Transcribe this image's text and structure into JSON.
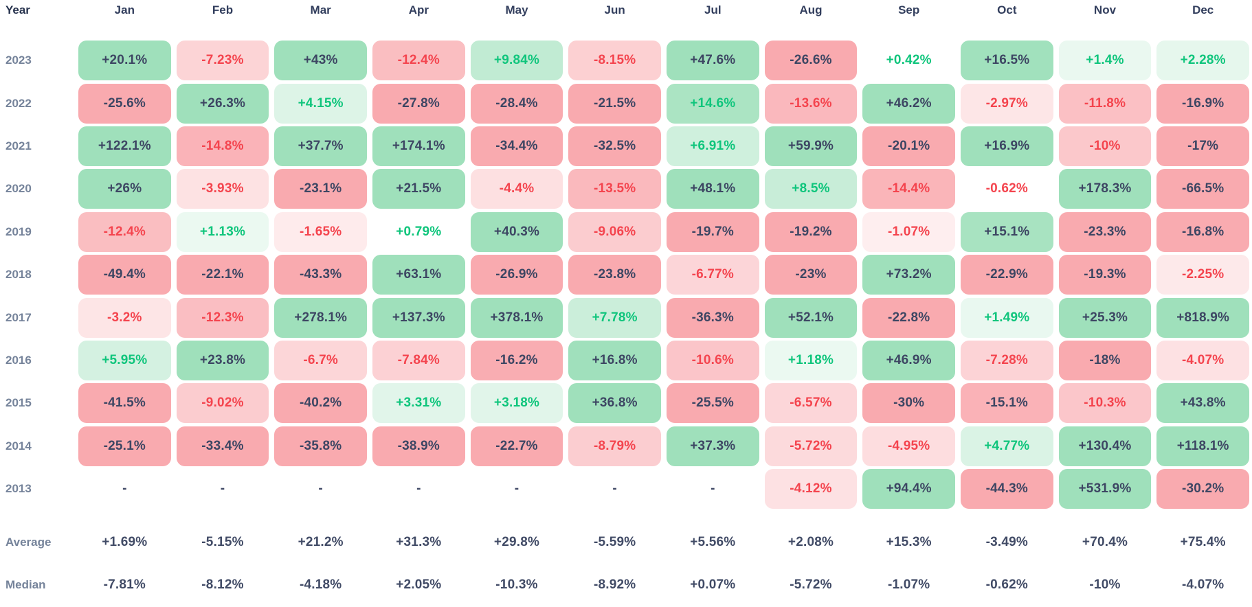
{
  "table": {
    "year_header": "Year",
    "months": [
      "Jan",
      "Feb",
      "Mar",
      "Apr",
      "May",
      "Jun",
      "Jul",
      "Aug",
      "Sep",
      "Oct",
      "Nov",
      "Dec"
    ],
    "rows": [
      {
        "year": "2023",
        "values": [
          "+20.1%",
          "-7.23%",
          "+43%",
          "-12.4%",
          "+9.84%",
          "-8.15%",
          "+47.6%",
          "-26.6%",
          "+0.42%",
          "+16.5%",
          "+1.4%",
          "+2.28%"
        ]
      },
      {
        "year": "2022",
        "values": [
          "-25.6%",
          "+26.3%",
          "+4.15%",
          "-27.8%",
          "-28.4%",
          "-21.5%",
          "+14.6%",
          "-13.6%",
          "+46.2%",
          "-2.97%",
          "-11.8%",
          "-16.9%"
        ]
      },
      {
        "year": "2021",
        "values": [
          "+122.1%",
          "-14.8%",
          "+37.7%",
          "+174.1%",
          "-34.4%",
          "-32.5%",
          "+6.91%",
          "+59.9%",
          "-20.1%",
          "+16.9%",
          "-10%",
          "-17%"
        ]
      },
      {
        "year": "2020",
        "values": [
          "+26%",
          "-3.93%",
          "-23.1%",
          "+21.5%",
          "-4.4%",
          "-13.5%",
          "+48.1%",
          "+8.5%",
          "-14.4%",
          "-0.62%",
          "+178.3%",
          "-66.5%"
        ]
      },
      {
        "year": "2019",
        "values": [
          "-12.4%",
          "+1.13%",
          "-1.65%",
          "+0.79%",
          "+40.3%",
          "-9.06%",
          "-19.7%",
          "-19.2%",
          "-1.07%",
          "+15.1%",
          "-23.3%",
          "-16.8%"
        ]
      },
      {
        "year": "2018",
        "values": [
          "-49.4%",
          "-22.1%",
          "-43.3%",
          "+63.1%",
          "-26.9%",
          "-23.8%",
          "-6.77%",
          "-23%",
          "+73.2%",
          "-22.9%",
          "-19.3%",
          "-2.25%"
        ]
      },
      {
        "year": "2017",
        "values": [
          "-3.2%",
          "-12.3%",
          "+278.1%",
          "+137.3%",
          "+378.1%",
          "+7.78%",
          "-36.3%",
          "+52.1%",
          "-22.8%",
          "+1.49%",
          "+25.3%",
          "+818.9%"
        ]
      },
      {
        "year": "2016",
        "values": [
          "+5.95%",
          "+23.8%",
          "-6.7%",
          "-7.84%",
          "-16.2%",
          "+16.8%",
          "-10.6%",
          "+1.18%",
          "+46.9%",
          "-7.28%",
          "-18%",
          "-4.07%"
        ]
      },
      {
        "year": "2015",
        "values": [
          "-41.5%",
          "-9.02%",
          "-40.2%",
          "+3.31%",
          "+3.18%",
          "+36.8%",
          "-25.5%",
          "-6.57%",
          "-30%",
          "-15.1%",
          "-10.3%",
          "+43.8%"
        ]
      },
      {
        "year": "2014",
        "values": [
          "-25.1%",
          "-33.4%",
          "-35.8%",
          "-38.9%",
          "-22.7%",
          "-8.79%",
          "+37.3%",
          "-5.72%",
          "-4.95%",
          "+4.77%",
          "+130.4%",
          "+118.1%"
        ]
      },
      {
        "year": "2013",
        "values": [
          "-",
          "-",
          "-",
          "-",
          "-",
          "-",
          "-",
          "-4.12%",
          "+94.4%",
          "-44.3%",
          "+531.9%",
          "-30.2%"
        ]
      }
    ],
    "summary": [
      {
        "label": "Average",
        "values": [
          "+1.69%",
          "-5.15%",
          "+21.2%",
          "+31.3%",
          "+29.8%",
          "-5.59%",
          "+5.56%",
          "+2.08%",
          "+15.3%",
          "-3.49%",
          "+70.4%",
          "+75.4%"
        ]
      },
      {
        "label": "Median",
        "values": [
          "-7.81%",
          "-8.12%",
          "-4.18%",
          "+2.05%",
          "-10.3%",
          "-8.92%",
          "+0.07%",
          "-5.72%",
          "-1.07%",
          "-0.62%",
          "-10%",
          "-4.07%"
        ]
      }
    ]
  },
  "colors": {
    "positive_strong_bg": "#9fe0bb",
    "negative_strong_bg": "#f9aaaf",
    "positive_text": "#0fc57c",
    "negative_text": "#f4444e",
    "dark_text": "#3d4663",
    "label_text": "#75839a",
    "month_header_text": "#323e5d",
    "year_header_text": "#27334e",
    "summary_value_text": "#414b66"
  },
  "chart_data": {
    "type": "heatmap",
    "title": "Monthly returns heatmap by year",
    "x": [
      "Jan",
      "Feb",
      "Mar",
      "Apr",
      "May",
      "Jun",
      "Jul",
      "Aug",
      "Sep",
      "Oct",
      "Nov",
      "Dec"
    ],
    "rows": [
      {
        "year": 2023,
        "values": [
          20.1,
          -7.23,
          43,
          -12.4,
          9.84,
          -8.15,
          47.6,
          -26.6,
          0.42,
          16.5,
          1.4,
          2.28
        ]
      },
      {
        "year": 2022,
        "values": [
          -25.6,
          26.3,
          4.15,
          -27.8,
          -28.4,
          -21.5,
          14.6,
          -13.6,
          46.2,
          -2.97,
          -11.8,
          -16.9
        ]
      },
      {
        "year": 2021,
        "values": [
          122.1,
          -14.8,
          37.7,
          174.1,
          -34.4,
          -32.5,
          6.91,
          59.9,
          -20.1,
          16.9,
          -10,
          -17
        ]
      },
      {
        "year": 2020,
        "values": [
          26,
          -3.93,
          -23.1,
          21.5,
          -4.4,
          -13.5,
          48.1,
          8.5,
          -14.4,
          -0.62,
          178.3,
          -66.5
        ]
      },
      {
        "year": 2019,
        "values": [
          -12.4,
          1.13,
          -1.65,
          0.79,
          40.3,
          -9.06,
          -19.7,
          -19.2,
          -1.07,
          15.1,
          -23.3,
          -16.8
        ]
      },
      {
        "year": 2018,
        "values": [
          -49.4,
          -22.1,
          -43.3,
          63.1,
          -26.9,
          -23.8,
          -6.77,
          -23,
          73.2,
          -22.9,
          -19.3,
          -2.25
        ]
      },
      {
        "year": 2017,
        "values": [
          -3.2,
          -12.3,
          278.1,
          137.3,
          378.1,
          7.78,
          -36.3,
          52.1,
          -22.8,
          1.49,
          25.3,
          818.9
        ]
      },
      {
        "year": 2016,
        "values": [
          5.95,
          23.8,
          -6.7,
          -7.84,
          -16.2,
          16.8,
          -10.6,
          1.18,
          46.9,
          -7.28,
          -18,
          -4.07
        ]
      },
      {
        "year": 2015,
        "values": [
          -41.5,
          -9.02,
          -40.2,
          3.31,
          3.18,
          36.8,
          -25.5,
          -6.57,
          -30,
          -15.1,
          -10.3,
          43.8
        ]
      },
      {
        "year": 2014,
        "values": [
          -25.1,
          -33.4,
          -35.8,
          -38.9,
          -22.7,
          -8.79,
          37.3,
          -5.72,
          -4.95,
          4.77,
          130.4,
          118.1
        ]
      },
      {
        "year": 2013,
        "values": [
          null,
          null,
          null,
          null,
          null,
          null,
          null,
          -4.12,
          94.4,
          -44.3,
          531.9,
          -30.2
        ]
      }
    ],
    "average": [
      1.69,
      -5.15,
      21.2,
      31.3,
      29.8,
      -5.59,
      5.56,
      2.08,
      15.3,
      -3.49,
      70.4,
      75.4
    ],
    "median": [
      -7.81,
      -8.12,
      -4.18,
      2.05,
      -10.3,
      -8.92,
      0.07,
      -5.72,
      -1.07,
      -0.62,
      -10,
      -4.07
    ],
    "legend_position": "none",
    "grid": false
  }
}
